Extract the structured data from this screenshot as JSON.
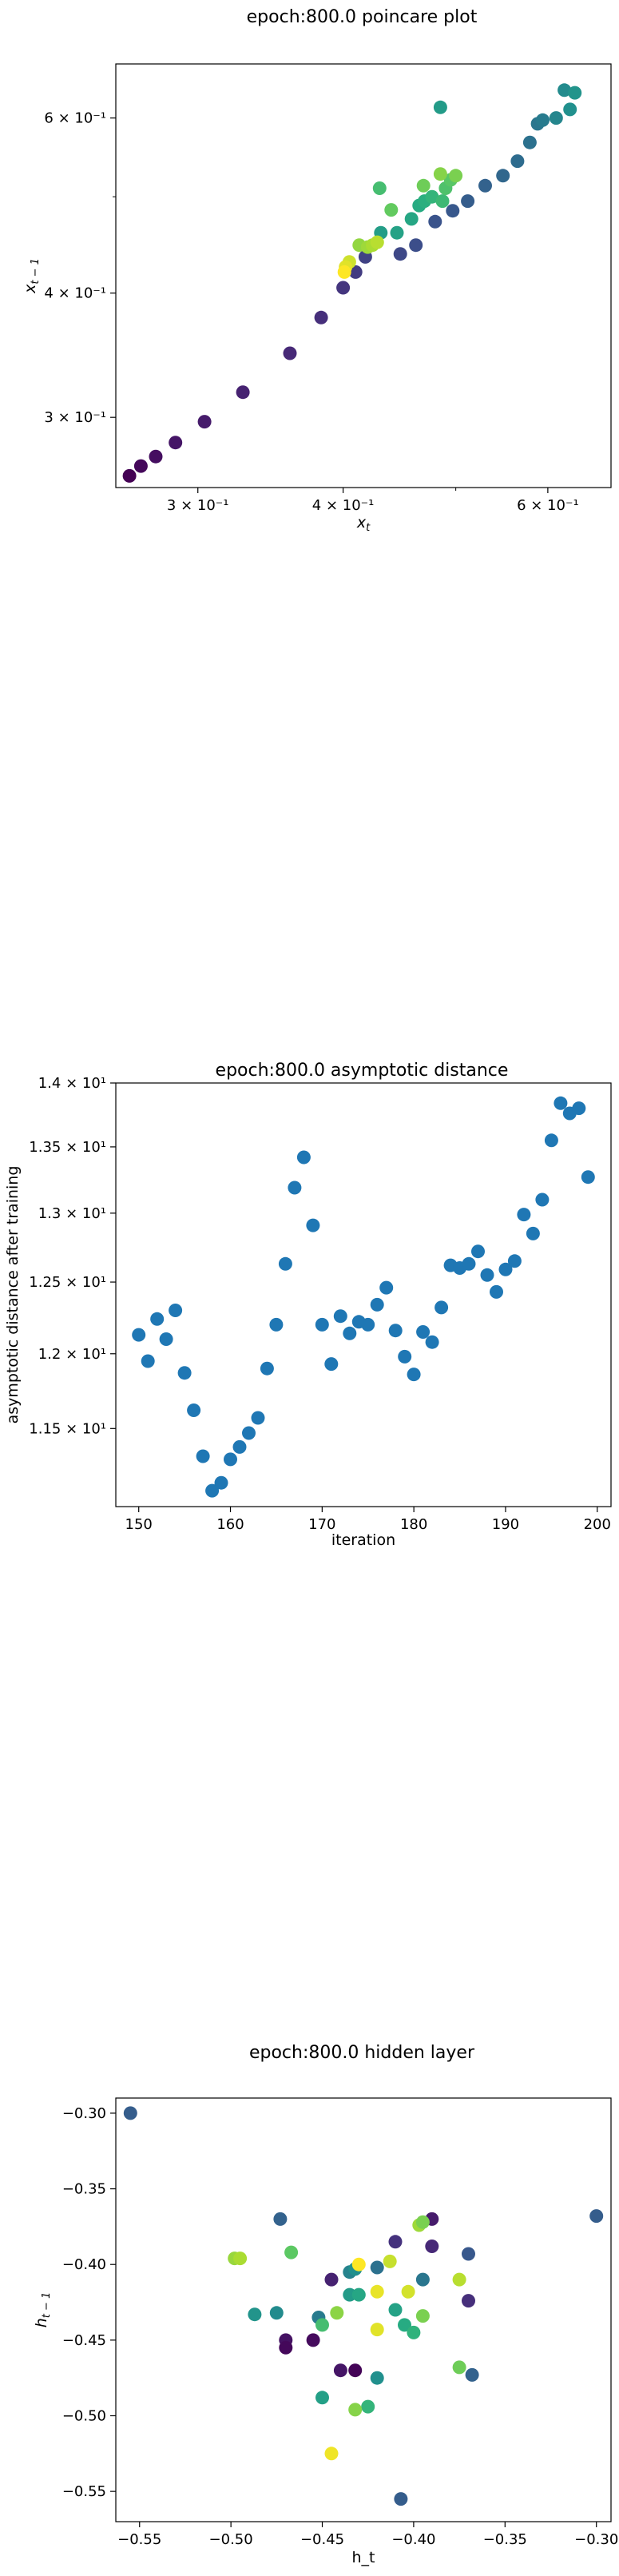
{
  "chart_data": [
    {
      "type": "scatter",
      "title": "epoch:800.0 poincare plot",
      "xlabel": "x_t",
      "ylabel": "x_{t-1}",
      "xscale": "log",
      "yscale": "log",
      "xlim": [
        0.255,
        0.68
      ],
      "ylim": [
        0.255,
        0.68
      ],
      "xticks": [
        {
          "value": 0.3,
          "label": "3 × 10⁻¹"
        },
        {
          "value": 0.4,
          "label": "4 × 10⁻¹"
        },
        {
          "value": 0.6,
          "label": "6 × 10⁻¹"
        }
      ],
      "yticks": [
        {
          "value": 0.3,
          "label": "3 × 10⁻¹"
        },
        {
          "value": 0.4,
          "label": "4 × 10⁻¹"
        },
        {
          "value": 0.6,
          "label": "6 × 10⁻¹"
        }
      ],
      "grid": false,
      "colormap": "viridis",
      "points": [
        {
          "x": 0.262,
          "y": 0.262,
          "c": 0.0
        },
        {
          "x": 0.268,
          "y": 0.268,
          "c": 0.02
        },
        {
          "x": 0.276,
          "y": 0.274,
          "c": 0.04
        },
        {
          "x": 0.287,
          "y": 0.283,
          "c": 0.06
        },
        {
          "x": 0.304,
          "y": 0.297,
          "c": 0.08
        },
        {
          "x": 0.328,
          "y": 0.318,
          "c": 0.1
        },
        {
          "x": 0.36,
          "y": 0.348,
          "c": 0.12
        },
        {
          "x": 0.383,
          "y": 0.378,
          "c": 0.14
        },
        {
          "x": 0.4,
          "y": 0.405,
          "c": 0.16
        },
        {
          "x": 0.41,
          "y": 0.42,
          "c": 0.18
        },
        {
          "x": 0.418,
          "y": 0.435,
          "c": 0.2
        },
        {
          "x": 0.448,
          "y": 0.438,
          "c": 0.22
        },
        {
          "x": 0.462,
          "y": 0.447,
          "c": 0.24
        },
        {
          "x": 0.48,
          "y": 0.472,
          "c": 0.26
        },
        {
          "x": 0.497,
          "y": 0.484,
          "c": 0.28
        },
        {
          "x": 0.512,
          "y": 0.495,
          "c": 0.3
        },
        {
          "x": 0.53,
          "y": 0.513,
          "c": 0.32
        },
        {
          "x": 0.549,
          "y": 0.525,
          "c": 0.34
        },
        {
          "x": 0.565,
          "y": 0.543,
          "c": 0.36
        },
        {
          "x": 0.579,
          "y": 0.567,
          "c": 0.38
        },
        {
          "x": 0.588,
          "y": 0.592,
          "c": 0.4
        },
        {
          "x": 0.594,
          "y": 0.597,
          "c": 0.42
        },
        {
          "x": 0.61,
          "y": 0.6,
          "c": 0.46
        },
        {
          "x": 0.627,
          "y": 0.612,
          "c": 0.5
        },
        {
          "x": 0.62,
          "y": 0.64,
          "c": 0.48
        },
        {
          "x": 0.633,
          "y": 0.636,
          "c": 0.52
        },
        {
          "x": 0.485,
          "y": 0.615,
          "c": 0.55
        },
        {
          "x": 0.431,
          "y": 0.46,
          "c": 0.56
        },
        {
          "x": 0.445,
          "y": 0.46,
          "c": 0.58
        },
        {
          "x": 0.458,
          "y": 0.475,
          "c": 0.6
        },
        {
          "x": 0.465,
          "y": 0.49,
          "c": 0.62
        },
        {
          "x": 0.47,
          "y": 0.495,
          "c": 0.64
        },
        {
          "x": 0.477,
          "y": 0.5,
          "c": 0.66
        },
        {
          "x": 0.487,
          "y": 0.495,
          "c": 0.68
        },
        {
          "x": 0.43,
          "y": 0.51,
          "c": 0.7
        },
        {
          "x": 0.49,
          "y": 0.51,
          "c": 0.72
        },
        {
          "x": 0.495,
          "y": 0.52,
          "c": 0.74
        },
        {
          "x": 0.44,
          "y": 0.485,
          "c": 0.76
        },
        {
          "x": 0.469,
          "y": 0.513,
          "c": 0.78
        },
        {
          "x": 0.5,
          "y": 0.525,
          "c": 0.8
        },
        {
          "x": 0.485,
          "y": 0.527,
          "c": 0.82
        },
        {
          "x": 0.413,
          "y": 0.447,
          "c": 0.84
        },
        {
          "x": 0.42,
          "y": 0.445,
          "c": 0.86
        },
        {
          "x": 0.424,
          "y": 0.447,
          "c": 0.88
        },
        {
          "x": 0.428,
          "y": 0.45,
          "c": 0.9
        },
        {
          "x": 0.405,
          "y": 0.43,
          "c": 0.93
        },
        {
          "x": 0.402,
          "y": 0.425,
          "c": 0.96
        },
        {
          "x": 0.401,
          "y": 0.42,
          "c": 1.0
        }
      ]
    },
    {
      "type": "scatter",
      "title": "epoch:800.0 asymptotic distance",
      "xlabel": "iteration",
      "ylabel": "asymptotic distance after training",
      "yscale": "log",
      "xlim": [
        147.5,
        201.5
      ],
      "ylim": [
        11.0,
        14.0
      ],
      "xticks": [
        {
          "value": 150,
          "label": "150"
        },
        {
          "value": 160,
          "label": "160"
        },
        {
          "value": 170,
          "label": "170"
        },
        {
          "value": 180,
          "label": "180"
        },
        {
          "value": 190,
          "label": "190"
        },
        {
          "value": 200,
          "label": "200"
        }
      ],
      "yticks": [
        {
          "value": 11.5,
          "label": "1.15 × 10¹"
        },
        {
          "value": 12.0,
          "label": "1.2 × 10¹"
        },
        {
          "value": 12.5,
          "label": "1.25 × 10¹"
        },
        {
          "value": 13.0,
          "label": "1.3 × 10¹"
        },
        {
          "value": 13.5,
          "label": "1.35 × 10¹"
        },
        {
          "value": 14.0,
          "label": "1.4 × 10¹"
        }
      ],
      "grid": false,
      "color": "#1f77b4",
      "x": [
        150,
        151,
        152,
        153,
        154,
        155,
        156,
        157,
        158,
        159,
        160,
        161,
        162,
        163,
        164,
        165,
        166,
        167,
        168,
        169,
        170,
        171,
        172,
        173,
        174,
        175,
        176,
        177,
        178,
        179,
        180,
        181,
        182,
        183,
        184,
        185,
        186,
        187,
        188,
        189,
        190,
        191,
        192,
        193,
        194,
        195,
        196,
        197,
        198,
        199
      ],
      "y": [
        12.13,
        11.95,
        12.24,
        12.1,
        12.3,
        11.87,
        11.62,
        11.32,
        11.1,
        11.15,
        11.3,
        11.38,
        11.47,
        11.57,
        11.9,
        12.2,
        12.63,
        13.19,
        13.42,
        12.91,
        12.2,
        11.93,
        12.26,
        12.14,
        12.22,
        12.2,
        12.34,
        12.46,
        12.16,
        11.98,
        11.86,
        12.15,
        12.08,
        12.32,
        12.62,
        12.6,
        12.63,
        12.72,
        12.55,
        12.43,
        12.59,
        12.65,
        12.99,
        12.85,
        13.1,
        13.55,
        13.84,
        13.76,
        13.8,
        13.27
      ]
    },
    {
      "type": "scatter",
      "title": "epoch:800.0 hidden layer",
      "xlabel": "h_t",
      "ylabel": "h_{t-1}",
      "xlim": [
        -0.563,
        -0.292
      ],
      "ylim": [
        -0.57,
        -0.29
      ],
      "xticks": [
        {
          "value": -0.55,
          "label": "−0.55"
        },
        {
          "value": -0.5,
          "label": "−0.50"
        },
        {
          "value": -0.45,
          "label": "−0.45"
        },
        {
          "value": -0.4,
          "label": "−0.40"
        },
        {
          "value": -0.35,
          "label": "−0.35"
        },
        {
          "value": -0.3,
          "label": "−0.30"
        }
      ],
      "yticks": [
        {
          "value": -0.3,
          "label": "−0.30"
        },
        {
          "value": -0.35,
          "label": "−0.35"
        },
        {
          "value": -0.4,
          "label": "−0.40"
        },
        {
          "value": -0.45,
          "label": "−0.45"
        },
        {
          "value": -0.5,
          "label": "−0.50"
        },
        {
          "value": -0.55,
          "label": "−0.55"
        }
      ],
      "grid": false,
      "colormap": "viridis",
      "points": [
        {
          "x": -0.555,
          "y": -0.3,
          "c": 0.3
        },
        {
          "x": -0.3,
          "y": -0.368,
          "c": 0.3
        },
        {
          "x": -0.407,
          "y": -0.555,
          "c": 0.3
        },
        {
          "x": -0.473,
          "y": -0.37,
          "c": 0.32
        },
        {
          "x": -0.368,
          "y": -0.473,
          "c": 0.32
        },
        {
          "x": -0.39,
          "y": -0.37,
          "c": 0.08
        },
        {
          "x": -0.37,
          "y": -0.393,
          "c": 0.28
        },
        {
          "x": -0.41,
          "y": -0.385,
          "c": 0.15
        },
        {
          "x": -0.39,
          "y": -0.388,
          "c": 0.12
        },
        {
          "x": -0.47,
          "y": -0.45,
          "c": 0.05
        },
        {
          "x": -0.47,
          "y": -0.455,
          "c": 0.02
        },
        {
          "x": -0.455,
          "y": -0.45,
          "c": 0.03
        },
        {
          "x": -0.445,
          "y": -0.41,
          "c": 0.1
        },
        {
          "x": -0.44,
          "y": -0.47,
          "c": 0.06
        },
        {
          "x": -0.432,
          "y": -0.47,
          "c": 0.01
        },
        {
          "x": -0.37,
          "y": -0.424,
          "c": 0.14
        },
        {
          "x": -0.42,
          "y": -0.402,
          "c": 0.38
        },
        {
          "x": -0.435,
          "y": -0.405,
          "c": 0.45
        },
        {
          "x": -0.432,
          "y": -0.403,
          "c": 0.5
        },
        {
          "x": -0.395,
          "y": -0.41,
          "c": 0.4
        },
        {
          "x": -0.475,
          "y": -0.432,
          "c": 0.48
        },
        {
          "x": -0.487,
          "y": -0.433,
          "c": 0.52
        },
        {
          "x": -0.452,
          "y": -0.435,
          "c": 0.42
        },
        {
          "x": -0.42,
          "y": -0.475,
          "c": 0.5
        },
        {
          "x": -0.435,
          "y": -0.42,
          "c": 0.55
        },
        {
          "x": -0.43,
          "y": -0.42,
          "c": 0.6
        },
        {
          "x": -0.41,
          "y": -0.43,
          "c": 0.58
        },
        {
          "x": -0.405,
          "y": -0.44,
          "c": 0.62
        },
        {
          "x": -0.4,
          "y": -0.445,
          "c": 0.65
        },
        {
          "x": -0.45,
          "y": -0.488,
          "c": 0.57
        },
        {
          "x": -0.425,
          "y": -0.494,
          "c": 0.66
        },
        {
          "x": -0.45,
          "y": -0.44,
          "c": 0.7
        },
        {
          "x": -0.467,
          "y": -0.392,
          "c": 0.75
        },
        {
          "x": -0.375,
          "y": -0.468,
          "c": 0.78
        },
        {
          "x": -0.395,
          "y": -0.434,
          "c": 0.8
        },
        {
          "x": -0.442,
          "y": -0.432,
          "c": 0.83
        },
        {
          "x": -0.432,
          "y": -0.496,
          "c": 0.82
        },
        {
          "x": -0.498,
          "y": -0.396,
          "c": 0.85
        },
        {
          "x": -0.495,
          "y": -0.396,
          "c": 0.88
        },
        {
          "x": -0.397,
          "y": -0.374,
          "c": 0.86
        },
        {
          "x": -0.395,
          "y": -0.372,
          "c": 0.8
        },
        {
          "x": -0.375,
          "y": -0.41,
          "c": 0.9
        },
        {
          "x": -0.413,
          "y": -0.398,
          "c": 0.92
        },
        {
          "x": -0.403,
          "y": -0.418,
          "c": 0.94
        },
        {
          "x": -0.42,
          "y": -0.443,
          "c": 0.96
        },
        {
          "x": -0.42,
          "y": -0.418,
          "c": 0.97
        },
        {
          "x": -0.445,
          "y": -0.525,
          "c": 0.98
        },
        {
          "x": -0.43,
          "y": -0.4,
          "c": 1.0
        }
      ]
    }
  ]
}
